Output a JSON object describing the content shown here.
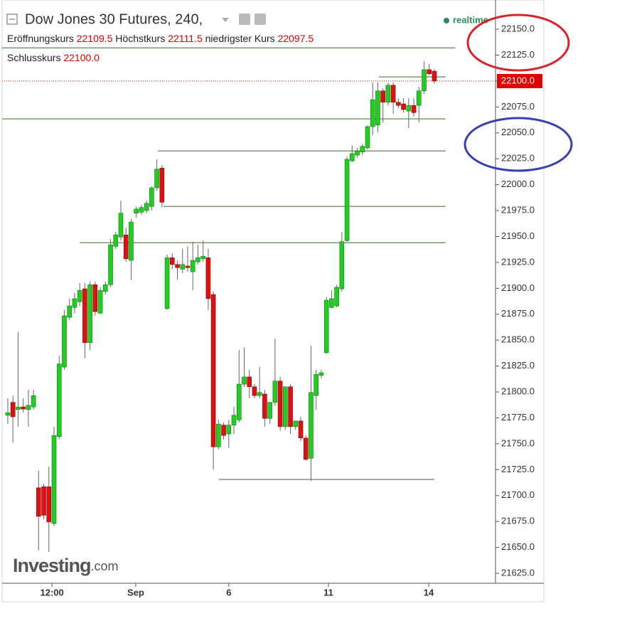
{
  "chart_data": {
    "type": "candlestick",
    "title": "Dow Jones 30 Futures, 240,",
    "realtime": "realtime",
    "header": {
      "open_label": "Eröffnungskurs",
      "open_value": "22109.5",
      "high_label": "Höchstkurs",
      "high_value": "22111.5",
      "low_label": "niedrigster Kurs",
      "low_value": "22097.5",
      "close_label": "Schlusskurs",
      "close_value": "22100.0"
    },
    "logo": "Investing",
    "logo_suffix": ".com",
    "last_price": {
      "value": 22100,
      "label": "22100.0"
    },
    "up_color": "#22cc22",
    "down_color": "#dd1111",
    "line_color": "#7f9a72",
    "xlim": [
      -1.1,
      94.9
    ],
    "xticks": [
      {
        "value": 8.6,
        "label": "12:00"
      },
      {
        "value": 24.9,
        "label": "Sep"
      },
      {
        "value": 43,
        "label": "6"
      },
      {
        "value": 62.4,
        "label": "11"
      },
      {
        "value": 81.9,
        "label": "14"
      }
    ],
    "ylim": [
      21615.4,
      22178.2
    ],
    "yticks": [
      {
        "value": 21625,
        "label": "21625.0"
      },
      {
        "value": 21650,
        "label": "21650.0"
      },
      {
        "value": 21675,
        "label": "21675.0"
      },
      {
        "value": 21700,
        "label": "21700.0"
      },
      {
        "value": 21725,
        "label": "21725.0"
      },
      {
        "value": 21750,
        "label": "21750.0"
      },
      {
        "value": 21775,
        "label": "21775.0"
      },
      {
        "value": 21800,
        "label": "21800.0"
      },
      {
        "value": 21825,
        "label": "21825.0"
      },
      {
        "value": 21850,
        "label": "21850.0"
      },
      {
        "value": 21875,
        "label": "21875.0"
      },
      {
        "value": 21900,
        "label": "21900.0"
      },
      {
        "value": 21925,
        "label": "21925.0"
      },
      {
        "value": 21950,
        "label": "21950.0"
      },
      {
        "value": 21975,
        "label": "21975.0"
      },
      {
        "value": 22000,
        "label": "22000.0"
      },
      {
        "value": 22025,
        "label": "22025.0"
      },
      {
        "value": 22050,
        "label": "22050.0"
      },
      {
        "value": 22075,
        "label": "22075.0"
      },
      {
        "value": 22100,
        "label": "22100.0"
      },
      {
        "value": 22125,
        "label": "22125.0"
      },
      {
        "value": 22150,
        "label": "22150.0"
      }
    ],
    "horizontal_lines": [
      {
        "value": 22132,
        "start": -1.1,
        "end": 87.1
      },
      {
        "value": 22104,
        "start": 72.2,
        "end": 85.2
      },
      {
        "value": 22063.5,
        "start": -1.1,
        "end": 85.2
      },
      {
        "value": 22032.5,
        "start": 29.2,
        "end": 85.2
      },
      {
        "value": 21979,
        "start": 30.3,
        "end": 85.2
      },
      {
        "value": 21944,
        "start": 14,
        "end": 85.2
      },
      {
        "value": 21715.5,
        "start": 41.1,
        "end": 83
      }
    ],
    "open": [
      21777.5,
      21790,
      21783,
      21785.5,
      21783,
      21785.5,
      21707.5,
      21708.5,
      21708.5,
      21673,
      21757,
      21824,
      21872,
      21881.5,
      21887,
      21899.5,
      21847.5,
      21903.5,
      21876,
      21897,
      21903.5,
      21940.5,
      21949.5,
      21951.5,
      21927,
      21972.5,
      21973.5,
      21975,
      21979,
      21997,
      22016,
      21880.5,
      21929.5,
      21923,
      21918.5,
      21921.5,
      21916,
      21925.5,
      21928.5,
      21929.5,
      21894,
      21747,
      21768,
      21759.5,
      21768,
      21773,
      21807.5,
      21814.5,
      21805,
      21796.5,
      21798,
      21774.5,
      21790,
      21810.5,
      21766.5,
      21805,
      21766.5,
      21772,
      21755.5,
      21736,
      21796.5,
      21816,
      21838,
      21881.5,
      21883,
      21899.5,
      21946,
      22023,
      22028.5,
      22031.5,
      22035.5,
      22056,
      22057.5,
      22090.5,
      22079.5,
      22096,
      22079.5,
      22078,
      22071,
      22076.5,
      22076.5,
      22090.5,
      22111,
      22109.5
    ],
    "high": [
      21794,
      21796.5,
      21858,
      21794,
      21802,
      21802,
      21724,
      21711.5,
      21728,
      21766.5,
      21835,
      21879,
      21890,
      21895.5,
      21905,
      21905,
      21906.5,
      21906.5,
      21901,
      21906.5,
      21947.5,
      21954.5,
      21984.5,
      21958.5,
      21967,
      21979,
      21980.5,
      21984.5,
      21998.5,
      22024.5,
      22019,
      21932.5,
      21934,
      21927,
      21938,
      21940.5,
      21945,
      21942,
      21946,
      21938,
      21897,
      21773,
      21770.5,
      21773,
      21785.5,
      21840.5,
      21843,
      21821.5,
      21807.5,
      21824,
      21802,
      21790,
      21851.5,
      21814.5,
      21805,
      21807.5,
      21772,
      21776,
      21758,
      21844.5,
      21821.5,
      21821.5,
      21891.5,
      21898,
      21903.5,
      21954.5,
      22027,
      22038,
      22035.5,
      22039.5,
      22057.5,
      22098.5,
      22098.5,
      22093,
      22098.5,
      22098.5,
      22083.5,
      22083.5,
      22083.5,
      22083.5,
      22094.5,
      22119,
      22116.5,
      22111.5
    ],
    "low": [
      21769,
      21751,
      21766.5,
      21780,
      21766.5,
      21783,
      21647,
      21677,
      21645.5,
      21670.5,
      21754,
      21821.5,
      21869.5,
      21876,
      21883,
      21832.5,
      21840.5,
      21873.5,
      21875,
      21894,
      21901,
      21938,
      21946,
      21925.5,
      21908,
      21968,
      21971,
      21972.5,
      21975,
      21994,
      21978,
      21879,
      21918.5,
      21908,
      21914.5,
      21916,
      21898,
      21923,
      21925.5,
      21879,
      21725,
      21744.5,
      21754,
      21746,
      21759.5,
      21770.5,
      21805,
      21794,
      21794,
      21794,
      21766.5,
      21769,
      21787,
      21762.5,
      21763.5,
      21759.5,
      21763.5,
      21752.5,
      21733.5,
      21714,
      21783,
      21813,
      21836.5,
      21880.5,
      21881.5,
      21897,
      21945,
      22021.5,
      22026,
      22028.5,
      22034,
      22048,
      22050.5,
      22060,
      22076.5,
      22068.5,
      22074,
      22069.5,
      22054.5,
      22065.5,
      22060,
      22087.5,
      22105.5,
      22097.5
    ],
    "close": [
      21780,
      21776,
      21785.5,
      21783.5,
      21787,
      21796.5,
      21680,
      21681,
      21674.5,
      21758,
      21827,
      21873.5,
      21883,
      21890,
      21898,
      21847.5,
      21903.5,
      21877.5,
      21898,
      21903.5,
      21942,
      21951.5,
      21972.5,
      21928.5,
      21964,
      21976.5,
      21978,
      21982,
      21997,
      22015,
      21983,
      21929.5,
      21923,
      21920,
      21923,
      21920,
      21927,
      21929.5,
      21931,
      21890,
      21747,
      21769,
      21758,
      21768,
      21777.5,
      21807.5,
      21814.5,
      21805,
      21796.5,
      21799.5,
      21774.5,
      21790,
      21810.5,
      21766.5,
      21805,
      21766.5,
      21772,
      21755.5,
      21735,
      21799.5,
      21817,
      21818.5,
      21888.5,
      21890,
      21901,
      21945,
      22024.5,
      22030,
      22032.5,
      22037,
      22056,
      22082,
      22090.5,
      22079.5,
      22096,
      22079.5,
      22076.5,
      22072.5,
      22076.5,
      22069.5,
      22090.5,
      22111,
      22107,
      22100
    ]
  }
}
